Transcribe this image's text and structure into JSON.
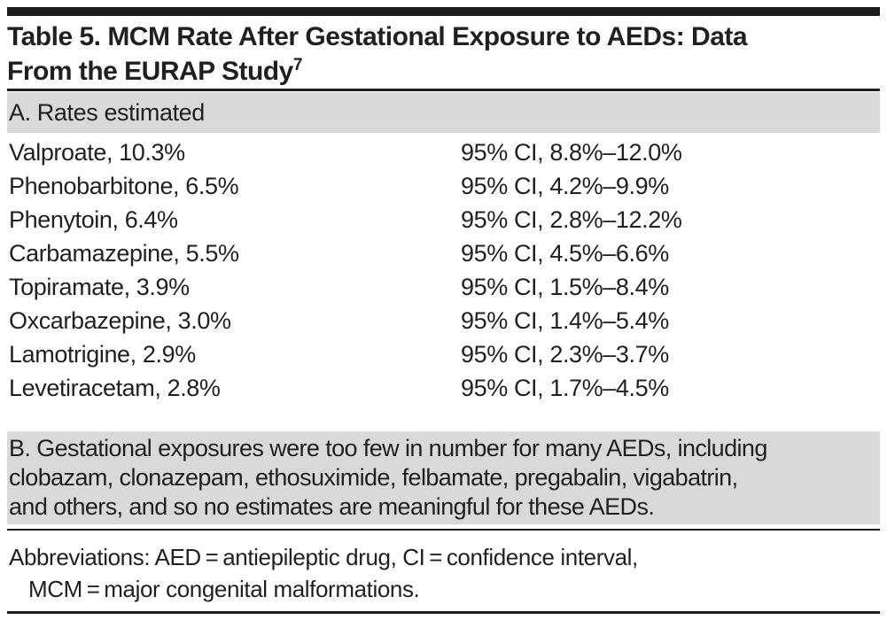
{
  "title": {
    "line1": "Table 5. MCM Rate After Gestational Exposure to AEDs: Data",
    "line2": "From the EURAP Study",
    "reference_superscript": "7"
  },
  "section_a": {
    "header": "A. Rates estimated",
    "rows": [
      {
        "drug_rate": "Valproate, 10.3%",
        "ci": "95% CI, 8.8%–12.0%"
      },
      {
        "drug_rate": "Phenobarbitone, 6.5%",
        "ci": "95% CI, 4.2%–9.9%"
      },
      {
        "drug_rate": "Phenytoin, 6.4%",
        "ci": "95% CI, 2.8%–12.2%"
      },
      {
        "drug_rate": "Carbamazepine, 5.5%",
        "ci": "95% CI, 4.5%–6.6%"
      },
      {
        "drug_rate": "Topiramate, 3.9%",
        "ci": "95% CI, 1.5%–8.4%"
      },
      {
        "drug_rate": "Oxcarbazepine, 3.0%",
        "ci": "95% CI, 1.4%–5.4%"
      },
      {
        "drug_rate": "Lamotrigine, 2.9%",
        "ci": "95% CI, 2.3%–3.7%"
      },
      {
        "drug_rate": "Levetiracetam, 2.8%",
        "ci": "95% CI, 1.7%–4.5%"
      }
    ]
  },
  "section_b": {
    "lines": [
      "B. Gestational exposures were too few in number for many AEDs, including",
      "clobazam, clonazepam, ethosuximide, felbamate, pregabalin, vigabatrin,",
      "and others, and so no estimates are meaningful for these AEDs."
    ]
  },
  "footnote": {
    "lines": [
      "Abbreviations: AED = antiepileptic drug, CI = confidence interval,",
      "MCM = major congenital malformations."
    ]
  },
  "colors": {
    "text": "#231f20",
    "band_gray": "#d9d9d9",
    "rule_black": "#1c1c1c"
  }
}
